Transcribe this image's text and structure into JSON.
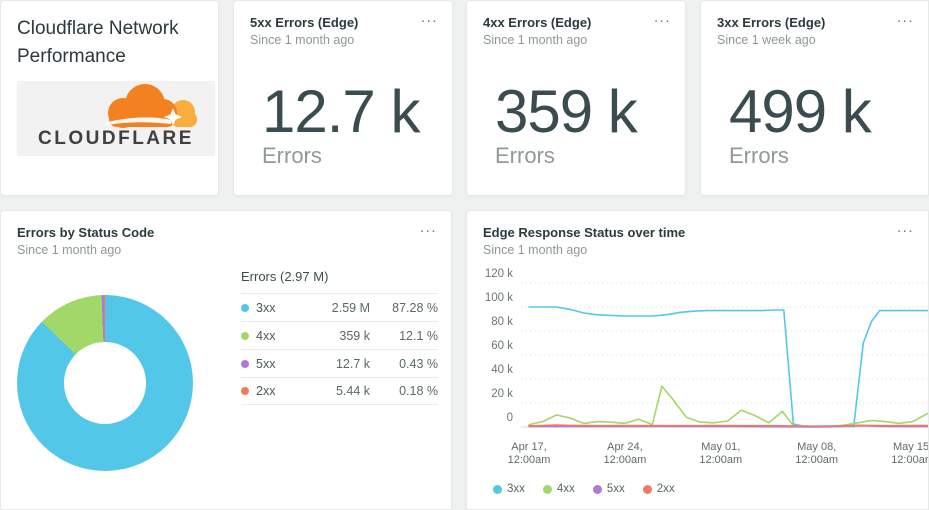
{
  "ui": {
    "menu_icon": "..."
  },
  "header_card": {
    "title": "Cloudflare Network Performance",
    "logo_text": "CLOUDFLARE"
  },
  "billboards": [
    {
      "title": "5xx Errors (Edge)",
      "subtitle": "Since 1 month ago",
      "value": "12.7 k",
      "label": "Errors"
    },
    {
      "title": "4xx Errors (Edge)",
      "subtitle": "Since 1 month ago",
      "value": "359 k",
      "label": "Errors"
    },
    {
      "title": "3xx Errors (Edge)",
      "subtitle": "Since 1 week ago",
      "value": "499 k",
      "label": "Errors"
    }
  ],
  "pie_card": {
    "title": "Errors by Status Code",
    "subtitle": "Since 1 month ago",
    "table_header": "Errors (2.97 M)"
  },
  "line_card": {
    "title": "Edge Response Status over time",
    "subtitle": "Since 1 month ago"
  },
  "chart_data": [
    {
      "type": "pie",
      "title": "Errors by Status Code",
      "donut": true,
      "total_label": "Errors (2.97 M)",
      "slices": [
        {
          "label": "3xx",
          "value": "2.59 M",
          "percent": 87.28,
          "percent_label": "87.28 %",
          "color": "#53c7e8"
        },
        {
          "label": "4xx",
          "value": "359 k",
          "percent": 12.1,
          "percent_label": "12.1 %",
          "color": "#a1d867"
        },
        {
          "label": "5xx",
          "value": "12.7 k",
          "percent": 0.43,
          "percent_label": "0.43 %",
          "color": "#b179d6"
        },
        {
          "label": "2xx",
          "value": "5.44 k",
          "percent": 0.18,
          "percent_label": "0.18 %",
          "color": "#f2795e"
        }
      ]
    },
    {
      "type": "line",
      "title": "Edge Response Status over time",
      "xlabel": "",
      "ylabel": "",
      "ylim_k": [
        0,
        120
      ],
      "grid": "horizontal-dotted",
      "legend_position": "bottom-left",
      "yticks": [
        {
          "v": 120,
          "label": "120 k"
        },
        {
          "v": 100,
          "label": "100 k"
        },
        {
          "v": 80,
          "label": "80 k"
        },
        {
          "v": 60,
          "label": "60 k"
        },
        {
          "v": 40,
          "label": "40 k"
        },
        {
          "v": 20,
          "label": "20 k"
        },
        {
          "v": 0,
          "label": "0"
        }
      ],
      "xticks": [
        {
          "day": 0,
          "lines": [
            "Apr 17,",
            "12:00am"
          ]
        },
        {
          "day": 7,
          "lines": [
            "Apr 24,",
            "12:00am"
          ]
        },
        {
          "day": 14,
          "lines": [
            "May 01,",
            "12:00am"
          ]
        },
        {
          "day": 21,
          "lines": [
            "May 08,",
            "12:00am"
          ]
        },
        {
          "day": 28,
          "lines": [
            "May 15,",
            "12:00am"
          ]
        }
      ],
      "x_day_range": [
        0,
        29.3
      ],
      "series": [
        {
          "name": "3xx",
          "color": "#53c7e8",
          "points_day_k": [
            [
              0,
              100
            ],
            [
              1,
              100
            ],
            [
              2,
              100
            ],
            [
              3,
              98
            ],
            [
              4,
              95
            ],
            [
              5,
              93.5
            ],
            [
              6,
              93
            ],
            [
              7,
              92.5
            ],
            [
              8,
              92.5
            ],
            [
              9,
              92.5
            ],
            [
              10,
              93.5
            ],
            [
              11,
              95.5
            ],
            [
              12,
              96.5
            ],
            [
              13,
              97
            ],
            [
              14,
              97
            ],
            [
              15,
              97
            ],
            [
              16,
              97
            ],
            [
              17,
              97
            ],
            [
              18,
              97.5
            ],
            [
              18.6,
              97.5
            ],
            [
              19.3,
              2.5
            ],
            [
              20,
              0.8
            ],
            [
              21,
              0.4
            ],
            [
              22,
              0.4
            ],
            [
              23,
              0.6
            ],
            [
              23.7,
              0.3
            ],
            [
              24.4,
              70
            ],
            [
              25,
              88
            ],
            [
              25.6,
              97
            ],
            [
              26.5,
              97
            ],
            [
              27.5,
              97
            ],
            [
              28.5,
              97
            ],
            [
              29.3,
              97
            ]
          ]
        },
        {
          "name": "4xx",
          "color": "#a1d867",
          "points_day_k": [
            [
              0,
              2
            ],
            [
              1,
              4.5
            ],
            [
              2,
              10
            ],
            [
              3,
              7.5
            ],
            [
              4,
              3
            ],
            [
              5,
              4.5
            ],
            [
              6,
              4
            ],
            [
              7,
              3
            ],
            [
              8,
              6.5
            ],
            [
              9,
              2
            ],
            [
              9.7,
              34
            ],
            [
              10.5,
              23
            ],
            [
              11.5,
              8
            ],
            [
              12.5,
              4
            ],
            [
              13.5,
              3.5
            ],
            [
              14.5,
              5
            ],
            [
              15.5,
              14
            ],
            [
              16.5,
              9.5
            ],
            [
              17.5,
              3.5
            ],
            [
              18.5,
              13
            ],
            [
              19.3,
              1
            ],
            [
              20,
              0.2
            ],
            [
              21,
              0.1
            ],
            [
              22,
              0.3
            ],
            [
              23,
              1.5
            ],
            [
              24,
              3.5
            ],
            [
              25,
              5.5
            ],
            [
              26,
              4.5
            ],
            [
              27,
              3
            ],
            [
              28,
              4.5
            ],
            [
              29.3,
              12.5
            ]
          ]
        },
        {
          "name": "5xx",
          "color": "#b179d6",
          "points_day_k": [
            [
              0,
              0.3
            ],
            [
              5,
              0.3
            ],
            [
              10,
              0.4
            ],
            [
              15,
              0.3
            ],
            [
              19,
              0.2
            ],
            [
              22,
              0.2
            ],
            [
              23.5,
              0.9
            ],
            [
              24.5,
              1.1
            ],
            [
              25.5,
              0.6
            ],
            [
              27,
              0.3
            ],
            [
              29.3,
              0.3
            ]
          ]
        },
        {
          "name": "2xx",
          "color": "#f2795e",
          "points_day_k": [
            [
              0,
              1
            ],
            [
              1,
              1.2
            ],
            [
              2,
              1.6
            ],
            [
              3,
              1.3
            ],
            [
              5,
              1.1
            ],
            [
              8,
              1.2
            ],
            [
              10,
              1.1
            ],
            [
              12,
              1.1
            ],
            [
              14,
              1.2
            ],
            [
              16,
              1.1
            ],
            [
              18,
              1.1
            ],
            [
              19.5,
              0.8
            ],
            [
              21,
              0.7
            ],
            [
              22.5,
              0.9
            ],
            [
              24,
              1.4
            ],
            [
              25,
              1.2
            ],
            [
              27,
              1.1
            ],
            [
              28.5,
              1.3
            ],
            [
              29.3,
              1.2
            ]
          ]
        }
      ],
      "legend": [
        "3xx",
        "4xx",
        "5xx",
        "2xx"
      ]
    }
  ]
}
